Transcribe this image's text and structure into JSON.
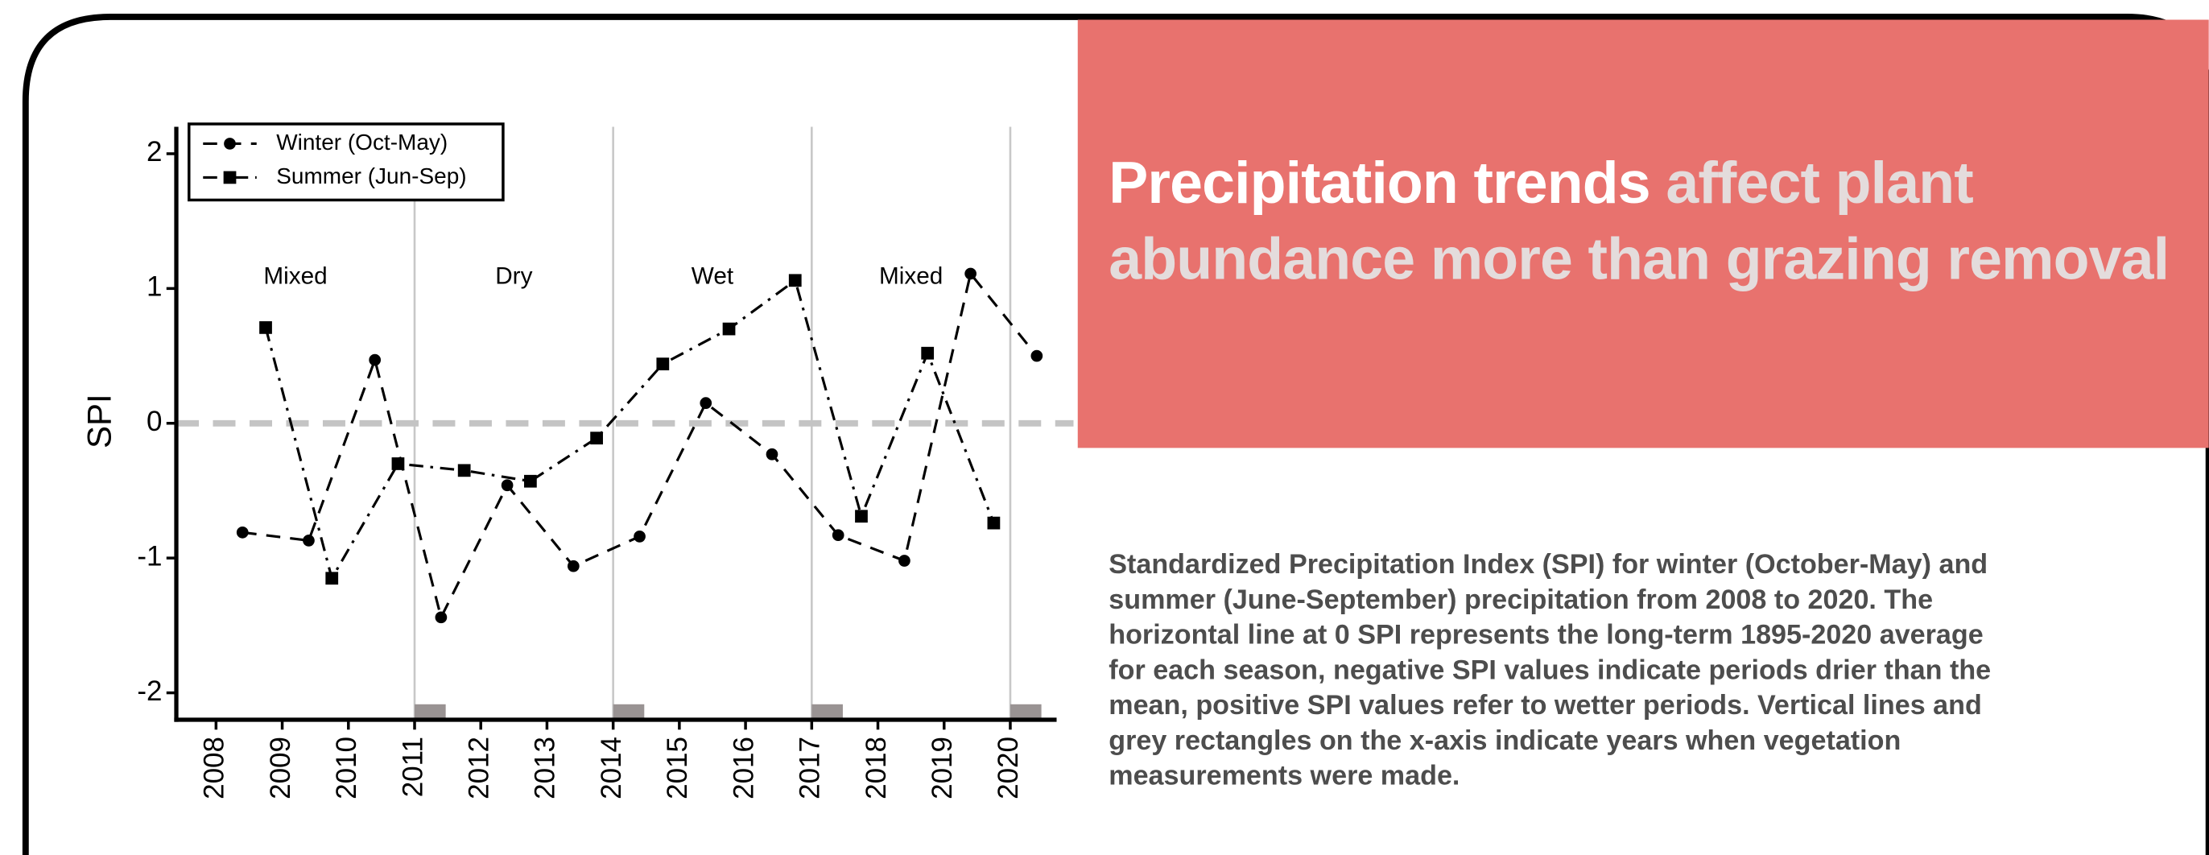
{
  "chart_data": {
    "type": "line",
    "title_highlight": "Precipitation trends",
    "title_rest": "affect plant abundance more than grazing removal",
    "caption": "Standardized Precipitation Index (SPI) for winter (October-May) and summer (June-September) precipitation from 2008 to 2020. The horizontal line at 0 SPI represents the long-term 1895-2020 average for each season, negative SPI values indicate periods drier than the mean, positive SPI values refer to wetter periods. Vertical lines and grey rectangles on the x-axis indicate years when vegetation measurements were made.",
    "y_label": "SPI",
    "annotations": [
      "Mixed",
      "Dry",
      "Wet",
      "Mixed"
    ],
    "measurement_years": [
      2011,
      2014,
      2017,
      2020
    ],
    "reference_line": 0,
    "series": [
      {
        "name": "Winter (Oct-May)",
        "color": "#000000",
        "marker": "circle",
        "dash": "dashed",
        "x": [
          2008.4,
          2009.4,
          2010.4,
          2011.4,
          2012.4,
          2013.4,
          2014.4,
          2015.4,
          2016.4,
          2017.4,
          2018.4,
          2019.4,
          2020.4
        ],
        "values": [
          -0.81,
          -0.87,
          0.47,
          -1.44,
          -0.46,
          -1.06,
          -0.84,
          0.15,
          -0.23,
          -0.83,
          -1.02,
          1.11,
          0.5
        ]
      },
      {
        "name": "Summer (Jun-Sep)",
        "color": "#000000",
        "marker": "square",
        "dash": "dashdot",
        "x": [
          2008.75,
          2009.75,
          2010.75,
          2011.75,
          2012.75,
          2013.75,
          2014.75,
          2015.75,
          2016.75,
          2017.75,
          2018.75,
          2019.75
        ],
        "values": [
          0.71,
          -1.15,
          -0.3,
          -0.35,
          -0.43,
          -0.11,
          0.44,
          0.7,
          1.06,
          -0.69,
          0.52,
          -0.74
        ]
      }
    ],
    "xlim": [
      2007.4,
      2020.7
    ],
    "xticks": [
      2008,
      2009,
      2010,
      2011,
      2012,
      2013,
      2014,
      2015,
      2016,
      2017,
      2018,
      2019,
      2020
    ],
    "ylim": [
      -2.2,
      2.2
    ],
    "yticks": [
      -2,
      -1,
      0,
      1,
      2
    ],
    "legend": "upper left",
    "panel_color": "#e8726e"
  }
}
